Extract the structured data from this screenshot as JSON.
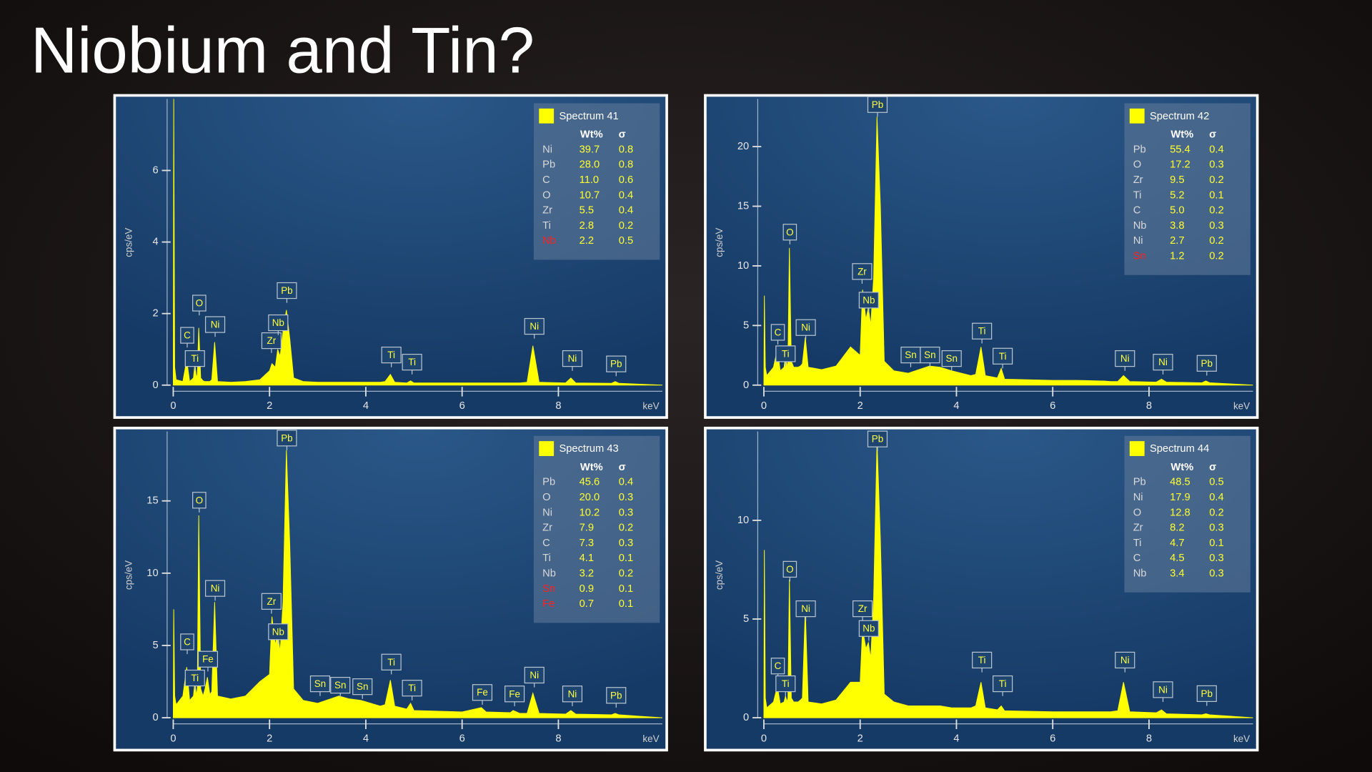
{
  "title": "Niobium and Tin?",
  "chart_data": [
    {
      "type": "area",
      "name": "Spectrum 41",
      "color": "#ffff00",
      "xlabel": "keV",
      "ylabel": "cps/eV",
      "xlim": [
        0,
        10.16
      ],
      "ylim": [
        0,
        8
      ],
      "xticks": [
        0,
        2,
        4,
        6,
        8
      ],
      "yticks": [
        0,
        2,
        4,
        6
      ],
      "x": [
        0,
        0.01,
        0.03,
        0.06,
        0.2,
        0.28,
        0.34,
        0.42,
        0.45,
        0.48,
        0.5,
        0.53,
        0.57,
        0.62,
        0.66,
        0.71,
        0.76,
        0.8,
        0.86,
        0.92,
        1.2,
        1.5,
        1.8,
        2.0,
        2.05,
        2.12,
        2.17,
        2.22,
        2.28,
        2.35,
        2.42,
        2.5,
        2.7,
        3.0,
        3.44,
        3.66,
        3.9,
        4.3,
        4.4,
        4.51,
        4.6,
        4.85,
        4.93,
        5.0,
        6.0,
        6.4,
        6.5,
        7.0,
        7.06,
        7.2,
        7.35,
        7.47,
        7.6,
        8.15,
        8.26,
        8.36,
        9.1,
        9.18,
        9.26,
        10.16
      ],
      "values": [
        0,
        8,
        0.5,
        0.15,
        0.1,
        0.7,
        0.1,
        0.2,
        0.6,
        0.2,
        0.3,
        1.6,
        0.2,
        0.12,
        0.1,
        0.1,
        0.1,
        0.15,
        1.2,
        0.1,
        0.08,
        0.1,
        0.15,
        0.4,
        0.6,
        0.5,
        1.0,
        0.8,
        1.5,
        2.1,
        1.3,
        0.2,
        0.1,
        0.08,
        0.08,
        0.08,
        0.08,
        0.08,
        0.1,
        0.3,
        0.08,
        0.06,
        0.12,
        0.06,
        0.06,
        0.06,
        0.06,
        0.06,
        0.06,
        0.06,
        0.08,
        1.1,
        0.08,
        0.06,
        0.2,
        0.06,
        0.05,
        0.1,
        0.05,
        0
      ],
      "peaks": [
        {
          "label": "C",
          "x": 0.29,
          "y": 1.05
        },
        {
          "label": "Ti",
          "x": 0.45,
          "y": 0.4
        },
        {
          "label": "O",
          "x": 0.54,
          "y": 1.95
        },
        {
          "label": "Ni",
          "x": 0.87,
          "y": 1.35
        },
        {
          "label": "Zr",
          "x": 2.04,
          "y": 0.9
        },
        {
          "label": "Nb",
          "x": 2.18,
          "y": 1.4
        },
        {
          "label": "Pb",
          "x": 2.36,
          "y": 2.3
        },
        {
          "label": "Ti",
          "x": 4.53,
          "y": 0.5
        },
        {
          "label": "Ti",
          "x": 4.96,
          "y": 0.3
        },
        {
          "label": "Ni",
          "x": 7.5,
          "y": 1.3
        },
        {
          "label": "Ni",
          "x": 8.29,
          "y": 0.4
        },
        {
          "label": "Pb",
          "x": 9.2,
          "y": 0.25
        }
      ],
      "table": {
        "columns": [
          "Wt%",
          "σ"
        ],
        "rows": [
          {
            "element": "Ni",
            "wt": "39.7",
            "sigma": "0.8"
          },
          {
            "element": "Pb",
            "wt": "28.0",
            "sigma": "0.8"
          },
          {
            "element": "C",
            "wt": "11.0",
            "sigma": "0.6"
          },
          {
            "element": "O",
            "wt": "10.7",
            "sigma": "0.4"
          },
          {
            "element": "Zr",
            "wt": "5.5",
            "sigma": "0.4"
          },
          {
            "element": "Ti",
            "wt": "2.8",
            "sigma": "0.2"
          },
          {
            "element": "Nb",
            "wt": "2.2",
            "sigma": "0.5",
            "color": "#ff2020"
          }
        ]
      }
    },
    {
      "type": "area",
      "name": "Spectrum 42",
      "color": "#ffff00",
      "xlabel": "keV",
      "ylabel": "cps/eV",
      "xlim": [
        0,
        10.16
      ],
      "ylim": [
        0,
        24
      ],
      "xticks": [
        0,
        2,
        4,
        6,
        8
      ],
      "yticks": [
        0,
        5,
        10,
        15,
        20
      ],
      "x": [
        0,
        0.01,
        0.03,
        0.06,
        0.2,
        0.28,
        0.34,
        0.42,
        0.45,
        0.48,
        0.5,
        0.53,
        0.57,
        0.62,
        0.66,
        0.71,
        0.76,
        0.8,
        0.86,
        0.92,
        1.2,
        1.5,
        1.8,
        2.0,
        2.05,
        2.12,
        2.17,
        2.22,
        2.28,
        2.35,
        2.42,
        2.5,
        2.7,
        3.0,
        3.44,
        3.66,
        3.9,
        4.3,
        4.4,
        4.51,
        4.6,
        4.85,
        4.93,
        5.0,
        6.0,
        6.4,
        6.5,
        7.0,
        7.06,
        7.2,
        7.35,
        7.47,
        7.6,
        8.15,
        8.26,
        8.36,
        9.1,
        9.18,
        9.26,
        10.16
      ],
      "values": [
        0,
        7.5,
        1.5,
        0.8,
        1.5,
        3.0,
        1.2,
        1.5,
        2.5,
        1.5,
        2.0,
        11.5,
        2.0,
        1.5,
        1.5,
        1.5,
        1.6,
        1.8,
        4.0,
        1.5,
        1.3,
        1.6,
        3.2,
        2.5,
        8.0,
        5.5,
        6.5,
        5.0,
        9.0,
        22.5,
        15.0,
        2.0,
        1.2,
        1.0,
        1.6,
        1.5,
        1.2,
        0.8,
        0.9,
        3.2,
        0.8,
        0.6,
        1.4,
        0.5,
        0.4,
        0.4,
        0.4,
        0.35,
        0.35,
        0.3,
        0.3,
        0.8,
        0.3,
        0.25,
        0.5,
        0.25,
        0.2,
        0.35,
        0.2,
        0
      ],
      "peaks": [
        {
          "label": "C",
          "x": 0.29,
          "y": 3.4
        },
        {
          "label": "Ti",
          "x": 0.45,
          "y": 1.6
        },
        {
          "label": "O",
          "x": 0.54,
          "y": 11.8
        },
        {
          "label": "Ni",
          "x": 0.87,
          "y": 3.8
        },
        {
          "label": "Zr",
          "x": 2.04,
          "y": 8.5
        },
        {
          "label": "Nb",
          "x": 2.18,
          "y": 6.1
        },
        {
          "label": "Pb",
          "x": 2.36,
          "y": 22.5
        },
        {
          "label": "Sn",
          "x": 3.05,
          "y": 1.5
        },
        {
          "label": "Sn",
          "x": 3.45,
          "y": 1.5
        },
        {
          "label": "Sn",
          "x": 3.9,
          "y": 1.2
        },
        {
          "label": "Ti",
          "x": 4.53,
          "y": 3.5
        },
        {
          "label": "Ti",
          "x": 4.96,
          "y": 1.4
        },
        {
          "label": "Ni",
          "x": 7.5,
          "y": 1.2
        },
        {
          "label": "Ni",
          "x": 8.29,
          "y": 0.9
        },
        {
          "label": "Pb",
          "x": 9.2,
          "y": 0.8
        }
      ],
      "table": {
        "columns": [
          "Wt%",
          "σ"
        ],
        "rows": [
          {
            "element": "Pb",
            "wt": "55.4",
            "sigma": "0.4"
          },
          {
            "element": "O",
            "wt": "17.2",
            "sigma": "0.3"
          },
          {
            "element": "Zr",
            "wt": "9.5",
            "sigma": "0.2"
          },
          {
            "element": "Ti",
            "wt": "5.2",
            "sigma": "0.1"
          },
          {
            "element": "C",
            "wt": "5.0",
            "sigma": "0.2"
          },
          {
            "element": "Nb",
            "wt": "3.8",
            "sigma": "0.3"
          },
          {
            "element": "Ni",
            "wt": "2.7",
            "sigma": "0.2"
          },
          {
            "element": "Sn",
            "wt": "1.2",
            "sigma": "0.2",
            "color": "#ff2020"
          }
        ]
      }
    },
    {
      "type": "area",
      "name": "Spectrum 43",
      "color": "#ffff00",
      "xlabel": "keV",
      "ylabel": "cps/eV",
      "xlim": [
        0,
        10.16
      ],
      "ylim": [
        0,
        19.8
      ],
      "xticks": [
        0,
        2,
        4,
        6,
        8
      ],
      "yticks": [
        0,
        5,
        10,
        15
      ],
      "x": [
        0,
        0.01,
        0.03,
        0.06,
        0.2,
        0.28,
        0.34,
        0.42,
        0.45,
        0.48,
        0.5,
        0.53,
        0.57,
        0.62,
        0.66,
        0.71,
        0.76,
        0.8,
        0.86,
        0.92,
        1.2,
        1.5,
        1.8,
        2.0,
        2.05,
        2.12,
        2.17,
        2.22,
        2.28,
        2.35,
        2.42,
        2.5,
        2.7,
        3.0,
        3.44,
        3.66,
        3.9,
        4.3,
        4.4,
        4.51,
        4.6,
        4.85,
        4.93,
        5.0,
        6.0,
        6.4,
        6.5,
        7.0,
        7.06,
        7.2,
        7.35,
        7.47,
        7.6,
        8.15,
        8.26,
        8.36,
        9.1,
        9.18,
        9.26,
        10.16
      ],
      "values": [
        0,
        7.5,
        1.5,
        0.9,
        1.5,
        3.5,
        1.2,
        1.5,
        2.5,
        1.5,
        2.0,
        14.0,
        2.0,
        1.5,
        2.0,
        2.8,
        1.6,
        1.8,
        8.0,
        1.5,
        1.3,
        1.5,
        2.5,
        3.0,
        7.0,
        5.0,
        6.0,
        4.5,
        8.0,
        18.5,
        12.0,
        2.0,
        1.2,
        1.0,
        1.5,
        1.3,
        1.2,
        0.8,
        0.9,
        2.6,
        0.8,
        0.6,
        1.0,
        0.5,
        0.4,
        0.7,
        0.4,
        0.35,
        0.5,
        0.3,
        0.3,
        1.7,
        0.3,
        0.25,
        0.5,
        0.25,
        0.2,
        0.3,
        0.2,
        0
      ],
      "peaks": [
        {
          "label": "C",
          "x": 0.29,
          "y": 4.4
        },
        {
          "label": "Ti",
          "x": 0.45,
          "y": 1.9
        },
        {
          "label": "O",
          "x": 0.54,
          "y": 14.2
        },
        {
          "label": "Fe",
          "x": 0.72,
          "y": 3.2
        },
        {
          "label": "Ni",
          "x": 0.87,
          "y": 8.1
        },
        {
          "label": "Zr",
          "x": 2.04,
          "y": 7.2
        },
        {
          "label": "Nb",
          "x": 2.18,
          "y": 5.1
        },
        {
          "label": "Pb",
          "x": 2.36,
          "y": 18.5
        },
        {
          "label": "Sn",
          "x": 3.05,
          "y": 1.5
        },
        {
          "label": "Sn",
          "x": 3.47,
          "y": 1.4
        },
        {
          "label": "Sn",
          "x": 3.93,
          "y": 1.3
        },
        {
          "label": "Ti",
          "x": 4.53,
          "y": 3.0
        },
        {
          "label": "Ti",
          "x": 4.96,
          "y": 1.2
        },
        {
          "label": "Fe",
          "x": 6.42,
          "y": 0.9
        },
        {
          "label": "Fe",
          "x": 7.09,
          "y": 0.8
        },
        {
          "label": "Ni",
          "x": 7.5,
          "y": 2.1
        },
        {
          "label": "Ni",
          "x": 8.29,
          "y": 0.8
        },
        {
          "label": "Pb",
          "x": 9.2,
          "y": 0.7
        }
      ],
      "table": {
        "columns": [
          "Wt%",
          "σ"
        ],
        "rows": [
          {
            "element": "Pb",
            "wt": "45.6",
            "sigma": "0.4"
          },
          {
            "element": "O",
            "wt": "20.0",
            "sigma": "0.3"
          },
          {
            "element": "Ni",
            "wt": "10.2",
            "sigma": "0.3"
          },
          {
            "element": "Zr",
            "wt": "7.9",
            "sigma": "0.2"
          },
          {
            "element": "C",
            "wt": "7.3",
            "sigma": "0.3"
          },
          {
            "element": "Ti",
            "wt": "4.1",
            "sigma": "0.1"
          },
          {
            "element": "Nb",
            "wt": "3.2",
            "sigma": "0.2"
          },
          {
            "element": "Sn",
            "wt": "0.9",
            "sigma": "0.1",
            "color": "#ff2020"
          },
          {
            "element": "Fe",
            "wt": "0.7",
            "sigma": "0.1",
            "color": "#ff2020"
          }
        ]
      }
    },
    {
      "type": "area",
      "name": "Spectrum 44",
      "color": "#ffff00",
      "xlabel": "keV",
      "ylabel": "cps/eV",
      "xlim": [
        0,
        10.16
      ],
      "ylim": [
        0,
        14.5
      ],
      "xticks": [
        0,
        2,
        4,
        6,
        8
      ],
      "yticks": [
        0,
        5,
        10
      ],
      "x": [
        0,
        0.01,
        0.03,
        0.06,
        0.2,
        0.28,
        0.34,
        0.42,
        0.45,
        0.48,
        0.5,
        0.53,
        0.57,
        0.62,
        0.66,
        0.71,
        0.76,
        0.8,
        0.86,
        0.92,
        1.2,
        1.5,
        1.8,
        2.0,
        2.05,
        2.12,
        2.17,
        2.22,
        2.28,
        2.35,
        2.42,
        2.5,
        2.7,
        3.0,
        3.44,
        3.66,
        3.9,
        4.3,
        4.4,
        4.51,
        4.6,
        4.85,
        4.93,
        5.0,
        6.0,
        6.4,
        6.5,
        7.0,
        7.06,
        7.2,
        7.35,
        7.47,
        7.6,
        8.15,
        8.26,
        8.36,
        9.1,
        9.18,
        9.26,
        10.16
      ],
      "values": [
        0,
        8.5,
        1.0,
        0.5,
        0.8,
        1.6,
        0.7,
        0.8,
        1.1,
        0.8,
        1.0,
        7.0,
        1.0,
        0.8,
        0.8,
        0.8,
        0.9,
        1.0,
        5.5,
        0.8,
        0.7,
        0.9,
        1.8,
        1.8,
        4.5,
        3.5,
        3.8,
        3.0,
        6.0,
        14.0,
        9.0,
        1.2,
        0.8,
        0.6,
        0.6,
        0.6,
        0.5,
        0.5,
        0.6,
        1.8,
        0.5,
        0.4,
        0.6,
        0.35,
        0.3,
        0.3,
        0.3,
        0.3,
        0.3,
        0.3,
        0.35,
        1.8,
        0.3,
        0.25,
        0.4,
        0.2,
        0.15,
        0.2,
        0.15,
        0
      ],
      "peaks": [
        {
          "label": "C",
          "x": 0.29,
          "y": 2.0
        },
        {
          "label": "Ti",
          "x": 0.45,
          "y": 1.1
        },
        {
          "label": "O",
          "x": 0.54,
          "y": 6.9
        },
        {
          "label": "Ni",
          "x": 0.87,
          "y": 4.9
        },
        {
          "label": "Zr",
          "x": 2.05,
          "y": 4.9
        },
        {
          "label": "Nb",
          "x": 2.18,
          "y": 3.9
        },
        {
          "label": "Pb",
          "x": 2.36,
          "y": 13.5
        },
        {
          "label": "Ti",
          "x": 4.53,
          "y": 2.3
        },
        {
          "label": "Ti",
          "x": 4.96,
          "y": 1.1
        },
        {
          "label": "Ni",
          "x": 7.5,
          "y": 2.3
        },
        {
          "label": "Ni",
          "x": 8.29,
          "y": 0.8
        },
        {
          "label": "Pb",
          "x": 9.2,
          "y": 0.6
        }
      ],
      "table": {
        "columns": [
          "Wt%",
          "σ"
        ],
        "rows": [
          {
            "element": "Pb",
            "wt": "48.5",
            "sigma": "0.5"
          },
          {
            "element": "Ni",
            "wt": "17.9",
            "sigma": "0.4"
          },
          {
            "element": "O",
            "wt": "12.8",
            "sigma": "0.2"
          },
          {
            "element": "Zr",
            "wt": "8.2",
            "sigma": "0.3"
          },
          {
            "element": "Ti",
            "wt": "4.7",
            "sigma": "0.1"
          },
          {
            "element": "C",
            "wt": "4.5",
            "sigma": "0.3"
          },
          {
            "element": "Nb",
            "wt": "3.4",
            "sigma": "0.3"
          }
        ]
      }
    }
  ]
}
